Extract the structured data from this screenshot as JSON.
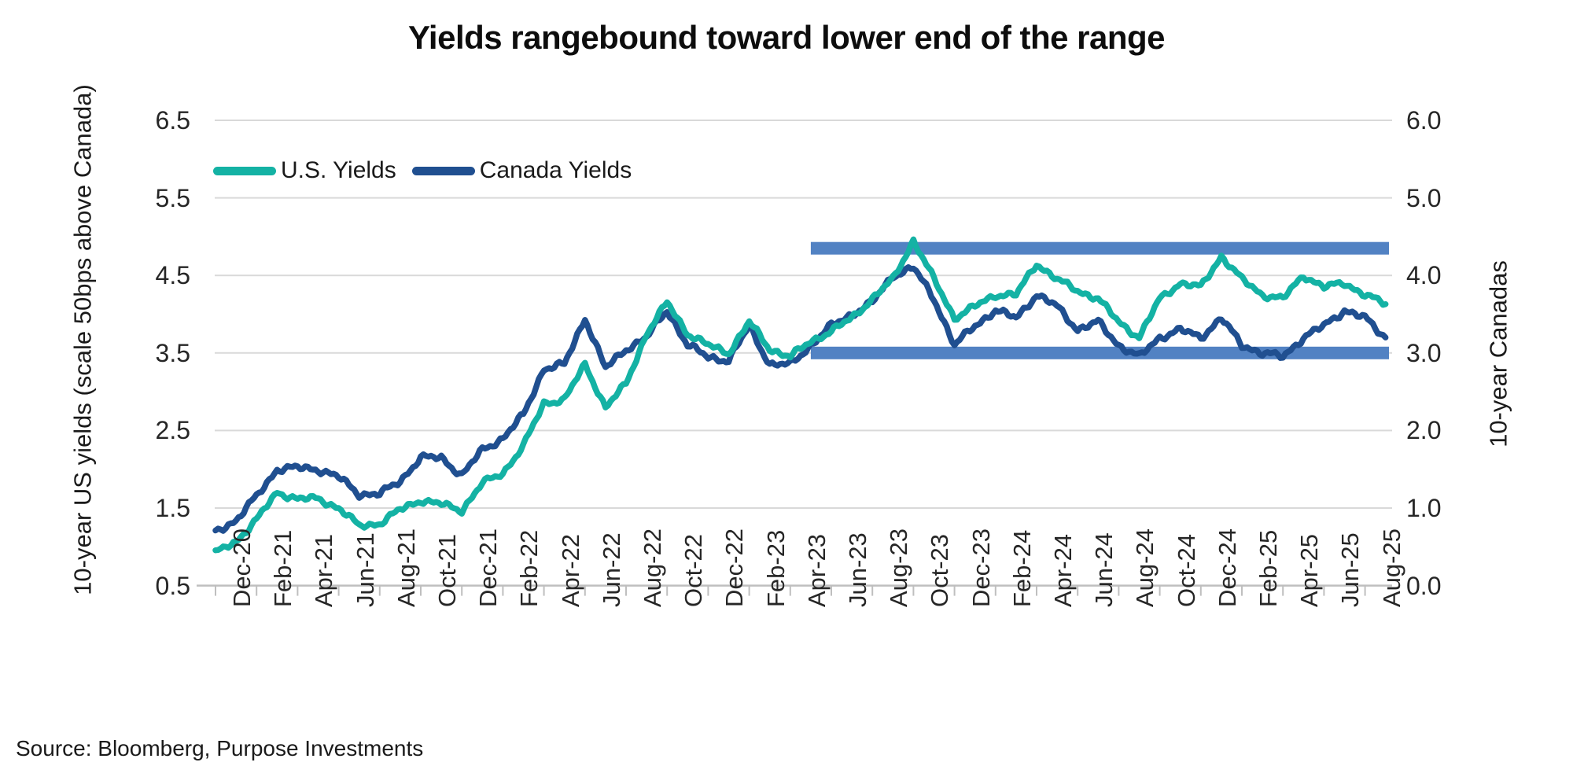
{
  "title": "Yields rangebound toward lower end of the range",
  "source": "Source: Bloomberg, Purpose Investments",
  "colors": {
    "us_line": "#14b2a4",
    "canada_line": "#204f90",
    "band": "#5282c3",
    "gridline": "#d9d9d9",
    "axis_line": "#bfbfbf",
    "text": "#1a1a1a"
  },
  "legend": [
    {
      "label": "U.S. Yields",
      "color": "#14b2a4"
    },
    {
      "label": "Canada Yields",
      "color": "#204f90"
    }
  ],
  "left_axis": {
    "title": "10-year US yields (scale 50bps above Canada)",
    "min": 0.5,
    "max": 6.5,
    "ticks": [
      "6.5",
      "5.5",
      "4.5",
      "3.5",
      "2.5",
      "1.5",
      "0.5"
    ]
  },
  "right_axis": {
    "title": "10-year Canadas",
    "min": 0.0,
    "max": 6.0,
    "ticks": [
      "6.0",
      "5.0",
      "4.0",
      "3.0",
      "2.0",
      "1.0",
      "0.0"
    ]
  },
  "x_axis": {
    "labels": [
      "Dec-20",
      "Feb-21",
      "Apr-21",
      "Jun-21",
      "Aug-21",
      "Oct-21",
      "Dec-21",
      "Feb-22",
      "Apr-22",
      "Jun-22",
      "Aug-22",
      "Oct-22",
      "Dec-22",
      "Feb-23",
      "Apr-23",
      "Jun-23",
      "Aug-23",
      "Oct-23",
      "Dec-23",
      "Feb-24",
      "Apr-24",
      "Jun-24",
      "Aug-24",
      "Oct-24",
      "Dec-24",
      "Feb-25",
      "Apr-25",
      "Jun-25",
      "Aug-25"
    ]
  },
  "chart_data": {
    "type": "line",
    "title": "Yields rangebound toward lower end of the range",
    "x": [
      "Dec-20",
      "Jan-21",
      "Feb-21",
      "Mar-21",
      "Apr-21",
      "May-21",
      "Jun-21",
      "Jul-21",
      "Aug-21",
      "Sep-21",
      "Oct-21",
      "Nov-21",
      "Dec-21",
      "Jan-22",
      "Feb-22",
      "Mar-22",
      "Apr-22",
      "May-22",
      "Jun-22",
      "Jul-22",
      "Aug-22",
      "Sep-22",
      "Oct-22",
      "Nov-22",
      "Dec-22",
      "Jan-23",
      "Feb-23",
      "Mar-23",
      "Apr-23",
      "May-23",
      "Jun-23",
      "Jul-23",
      "Aug-23",
      "Sep-23",
      "Oct-23",
      "Nov-23",
      "Dec-23",
      "Jan-24",
      "Feb-24",
      "Mar-24",
      "Apr-24",
      "May-24",
      "Jun-24",
      "Jul-24",
      "Aug-24",
      "Sep-24",
      "Oct-24",
      "Nov-24",
      "Dec-24",
      "Jan-25",
      "Feb-25",
      "Mar-25",
      "Apr-25",
      "May-25",
      "Jun-25",
      "Jul-25",
      "Aug-25",
      "Sep-25"
    ],
    "series": [
      {
        "name": "U.S. Yields",
        "axis": "left",
        "values": [
          0.92,
          1.07,
          1.35,
          1.7,
          1.62,
          1.62,
          1.5,
          1.27,
          1.3,
          1.48,
          1.6,
          1.55,
          1.47,
          1.82,
          1.95,
          2.3,
          2.85,
          2.9,
          3.35,
          2.8,
          3.1,
          3.75,
          4.15,
          3.75,
          3.6,
          3.5,
          3.9,
          3.55,
          3.45,
          3.65,
          3.78,
          3.95,
          4.2,
          4.45,
          4.95,
          4.45,
          3.95,
          4.1,
          4.25,
          4.25,
          4.65,
          4.45,
          4.3,
          4.2,
          3.9,
          3.7,
          4.2,
          4.4,
          4.35,
          4.75,
          4.45,
          4.25,
          4.2,
          4.5,
          4.35,
          4.4,
          4.25,
          4.13
        ]
      },
      {
        "name": "Canada Yields",
        "axis": "right",
        "values": [
          0.7,
          0.84,
          1.15,
          1.5,
          1.52,
          1.5,
          1.4,
          1.18,
          1.18,
          1.35,
          1.65,
          1.65,
          1.42,
          1.75,
          1.9,
          2.2,
          2.8,
          2.85,
          3.45,
          2.8,
          3.05,
          3.2,
          3.55,
          3.1,
          2.95,
          2.9,
          3.35,
          2.85,
          2.85,
          3.1,
          3.35,
          3.5,
          3.65,
          4.0,
          4.1,
          3.7,
          3.1,
          3.35,
          3.55,
          3.45,
          3.75,
          3.6,
          3.3,
          3.4,
          3.1,
          2.95,
          3.2,
          3.3,
          3.2,
          3.45,
          3.1,
          3.0,
          2.95,
          3.2,
          3.35,
          3.55,
          3.45,
          3.2
        ]
      }
    ],
    "bands": [
      {
        "name": "upper range band",
        "us_value": 4.85,
        "canada_value": 4.35,
        "start_month": "May-23",
        "end": "plot-right",
        "color": "#5282c3"
      },
      {
        "name": "lower range band",
        "us_value": 3.5,
        "canada_value": 3.0,
        "start_month": "May-23",
        "end": "plot-right",
        "color": "#5282c3"
      }
    ],
    "left_ylim": [
      0.5,
      6.5
    ],
    "right_ylim": [
      0.0,
      6.0
    ],
    "grid": "horizontal",
    "legend_position": "upper-left-inside"
  }
}
